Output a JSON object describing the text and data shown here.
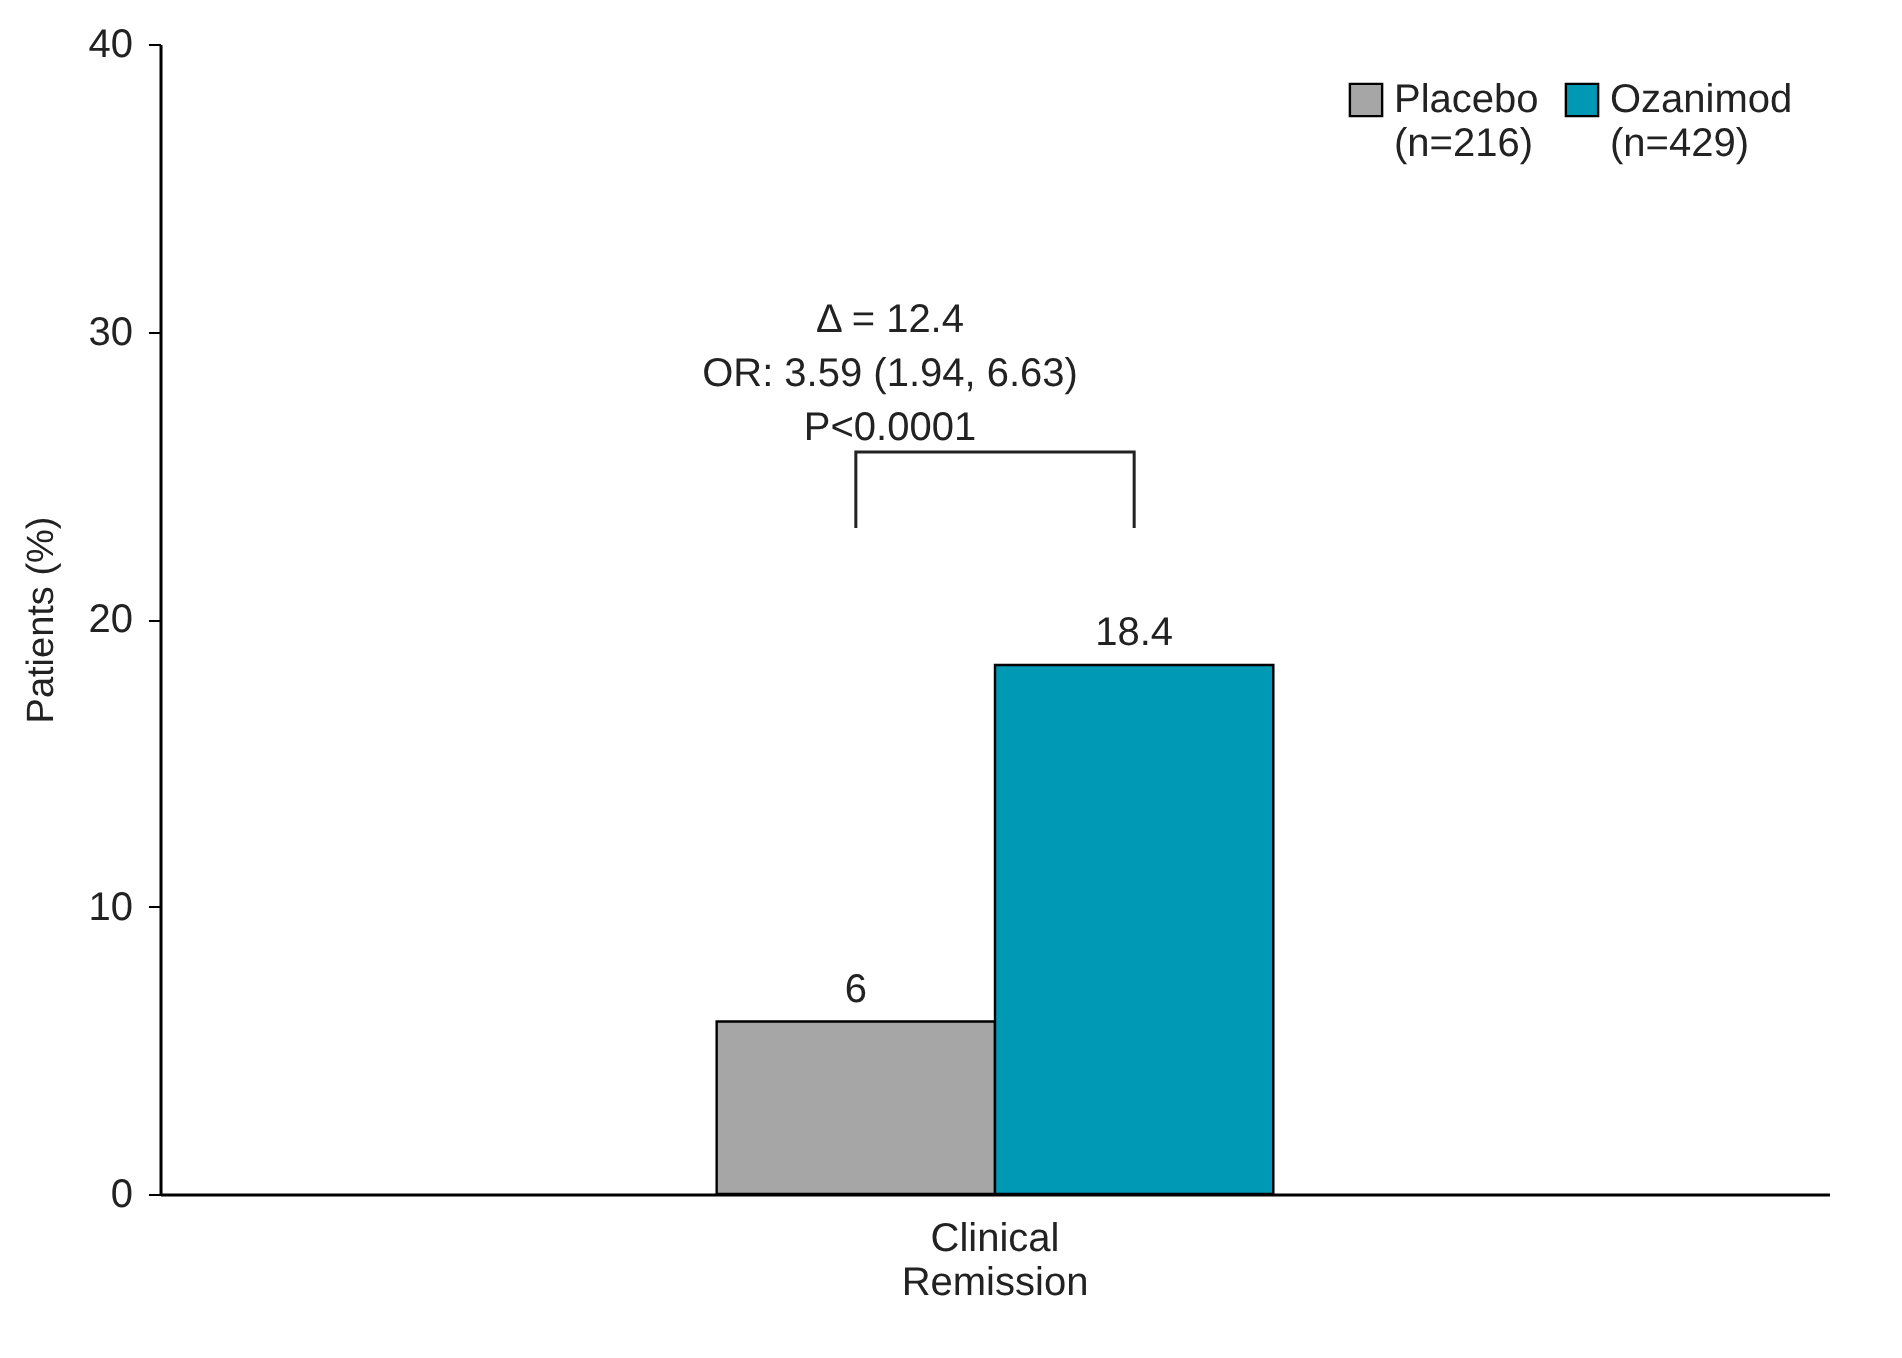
{
  "chart_data": {
    "type": "bar",
    "ylabel": "Patients (%)",
    "categories": [
      "Clinical Remission"
    ],
    "series": [
      {
        "name": "Placebo (n=216)",
        "color": "#a6a6a6",
        "values": [
          6
        ]
      },
      {
        "name": "Ozanimod (n=429)",
        "color": "#0099b5",
        "values": [
          18.4
        ]
      }
    ],
    "ylim": [
      0,
      40
    ],
    "yticks": [
      0,
      10,
      20,
      30,
      40
    ],
    "data_labels": true,
    "grid": false,
    "legend": "top right",
    "annotations": [
      "Δ = 12.4",
      "OR: 3.59 (1.94, 6.63)",
      "P<0.0001"
    ]
  }
}
